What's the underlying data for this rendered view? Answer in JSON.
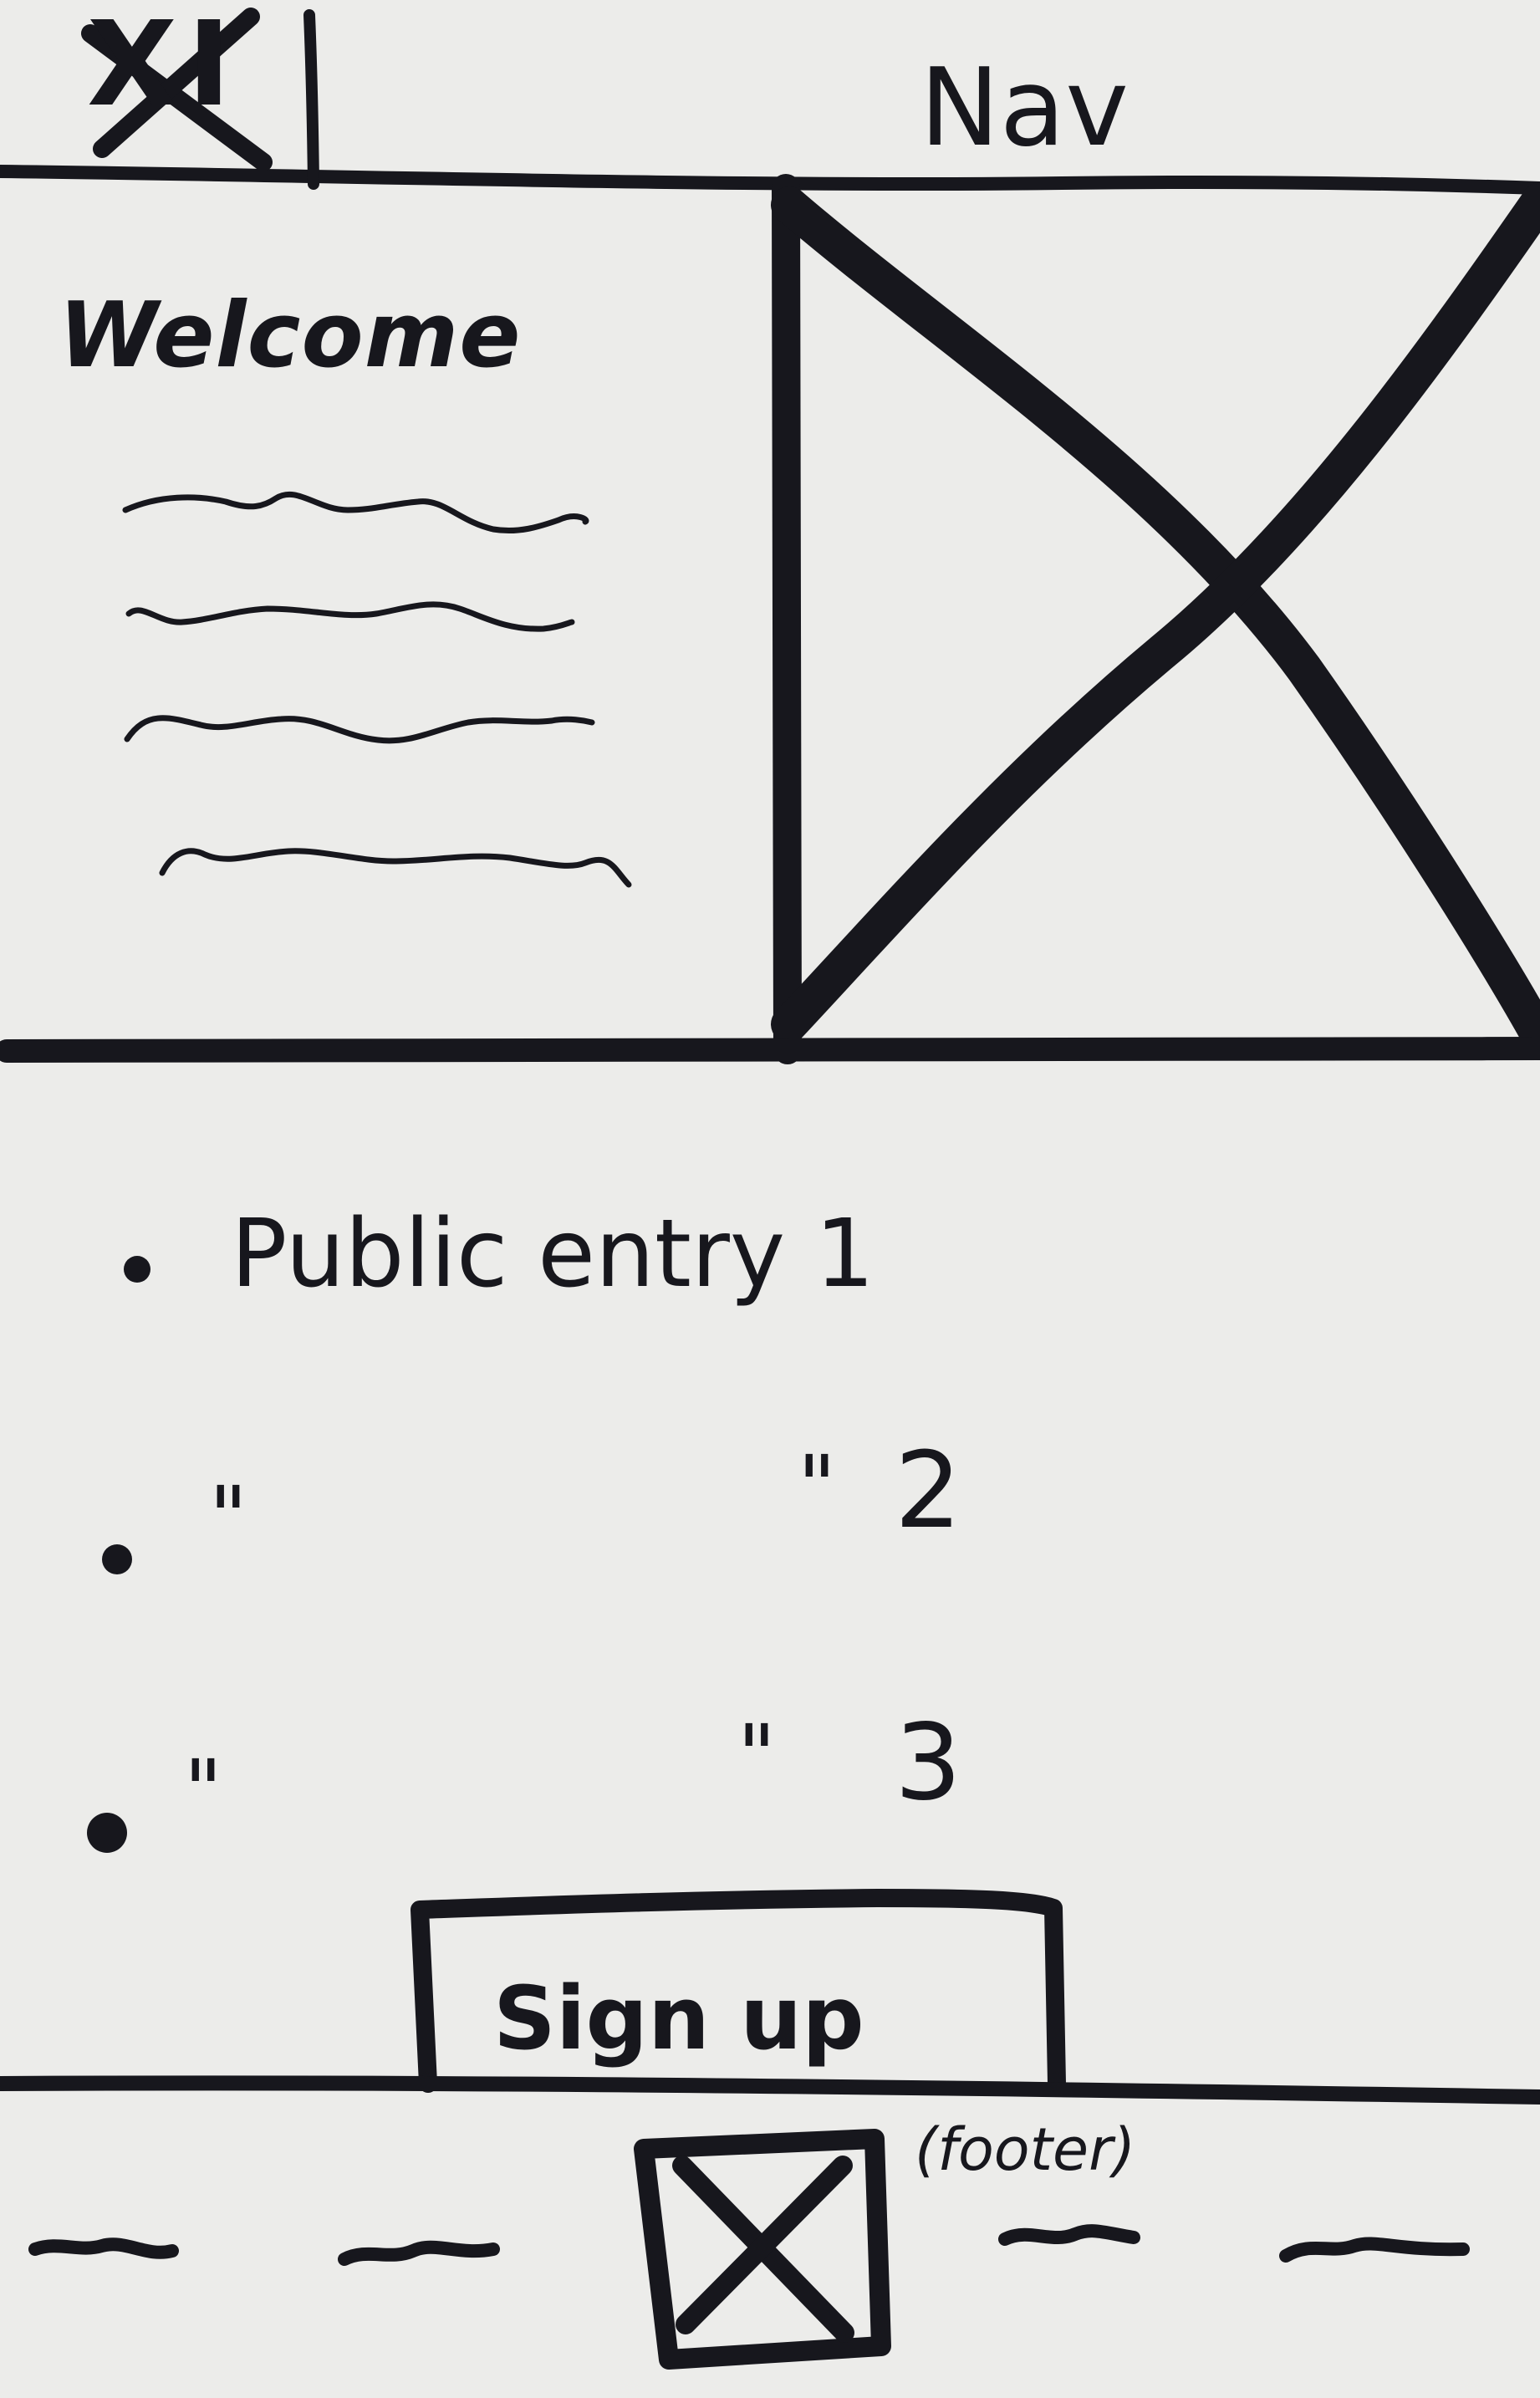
{
  "header": {
    "logo_text": "XI",
    "nav_label": "Nav"
  },
  "hero": {
    "title": "Welcome"
  },
  "entries": [
    {
      "left_text": "Public entry 1",
      "ditto_left": "",
      "ditto_right": "",
      "number": ""
    },
    {
      "left_text": "",
      "ditto_left": "\"",
      "ditto_right": "\"",
      "number": "2"
    },
    {
      "left_text": "",
      "ditto_left": "\"",
      "ditto_right": "\"",
      "number": "3"
    }
  ],
  "actions": {
    "signup_label": "Sign up"
  },
  "footer": {
    "note": "(footer)"
  }
}
